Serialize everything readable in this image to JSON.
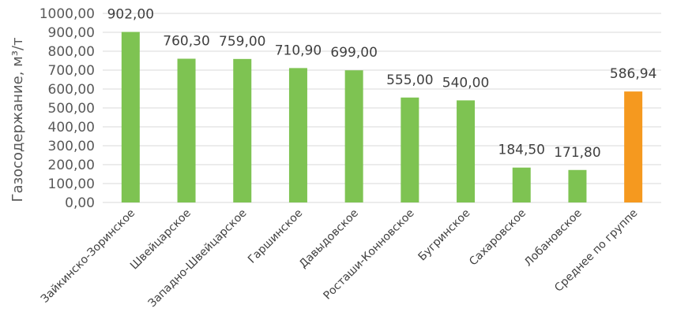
{
  "chart_data": {
    "type": "bar",
    "title": "",
    "xlabel": "",
    "ylabel": "Газосодержание, м³/т",
    "ylim": [
      0,
      1000
    ],
    "y_ticks": [
      "0,00",
      "100,00",
      "200,00",
      "300,00",
      "400,00",
      "500,00",
      "600,00",
      "700,00",
      "800,00",
      "900,00",
      "1000,00"
    ],
    "grid": true,
    "categories": [
      "Зайкинско-Зоринское",
      "Швейцарское",
      "Западно-Швейцарское",
      "Гаршинское",
      "Давыдовское",
      "Росташи-Конновское",
      "Бугринское",
      "Сахаровское",
      "Лобановское",
      "Среднее по группе"
    ],
    "values": [
      902.0,
      760.3,
      759.0,
      710.9,
      699.0,
      555.0,
      540.0,
      184.5,
      171.8,
      586.94
    ],
    "data_labels": [
      "902,00",
      "760,30",
      "759,00",
      "710,90",
      "699,00",
      "555,00",
      "540,00",
      "184,50",
      "171,80",
      "586,94"
    ],
    "colors": [
      "#7ec352",
      "#7ec352",
      "#7ec352",
      "#7ec352",
      "#7ec352",
      "#7ec352",
      "#7ec352",
      "#7ec352",
      "#7ec352",
      "#f5991f"
    ]
  }
}
